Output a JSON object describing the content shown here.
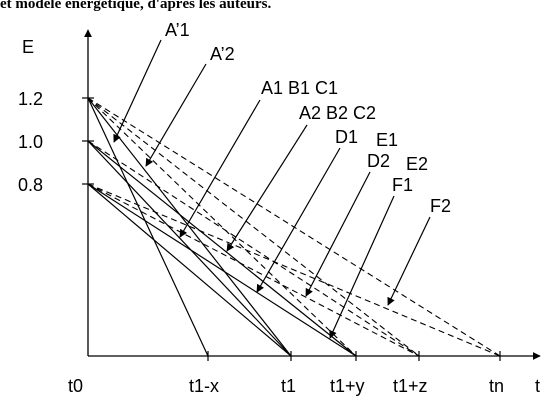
{
  "caption": "et modèle énergétique, d'après les auteurs.",
  "axes": {
    "y_label": "E",
    "x_label": "t",
    "y_ticks": [
      "1.2",
      "1.0",
      "0.8"
    ],
    "x_ticks": [
      "t0",
      "t1-x",
      "t1",
      "t1+y",
      "t1+z",
      "tn"
    ]
  },
  "callouts": [
    {
      "id": "a1prime",
      "label": "A’1"
    },
    {
      "id": "a2prime",
      "label": "A’2"
    },
    {
      "id": "abc1",
      "label": "A1 B1 C1"
    },
    {
      "id": "abc2",
      "label": "A2 B2 C2"
    },
    {
      "id": "d1",
      "label": "D1"
    },
    {
      "id": "e1",
      "label": "E1"
    },
    {
      "id": "d2",
      "label": "D2"
    },
    {
      "id": "e2",
      "label": "E2"
    },
    {
      "id": "f1",
      "label": "F1"
    },
    {
      "id": "f2",
      "label": "F2"
    }
  ],
  "colors": {
    "ink": "#000000",
    "background": "#ffffff"
  }
}
